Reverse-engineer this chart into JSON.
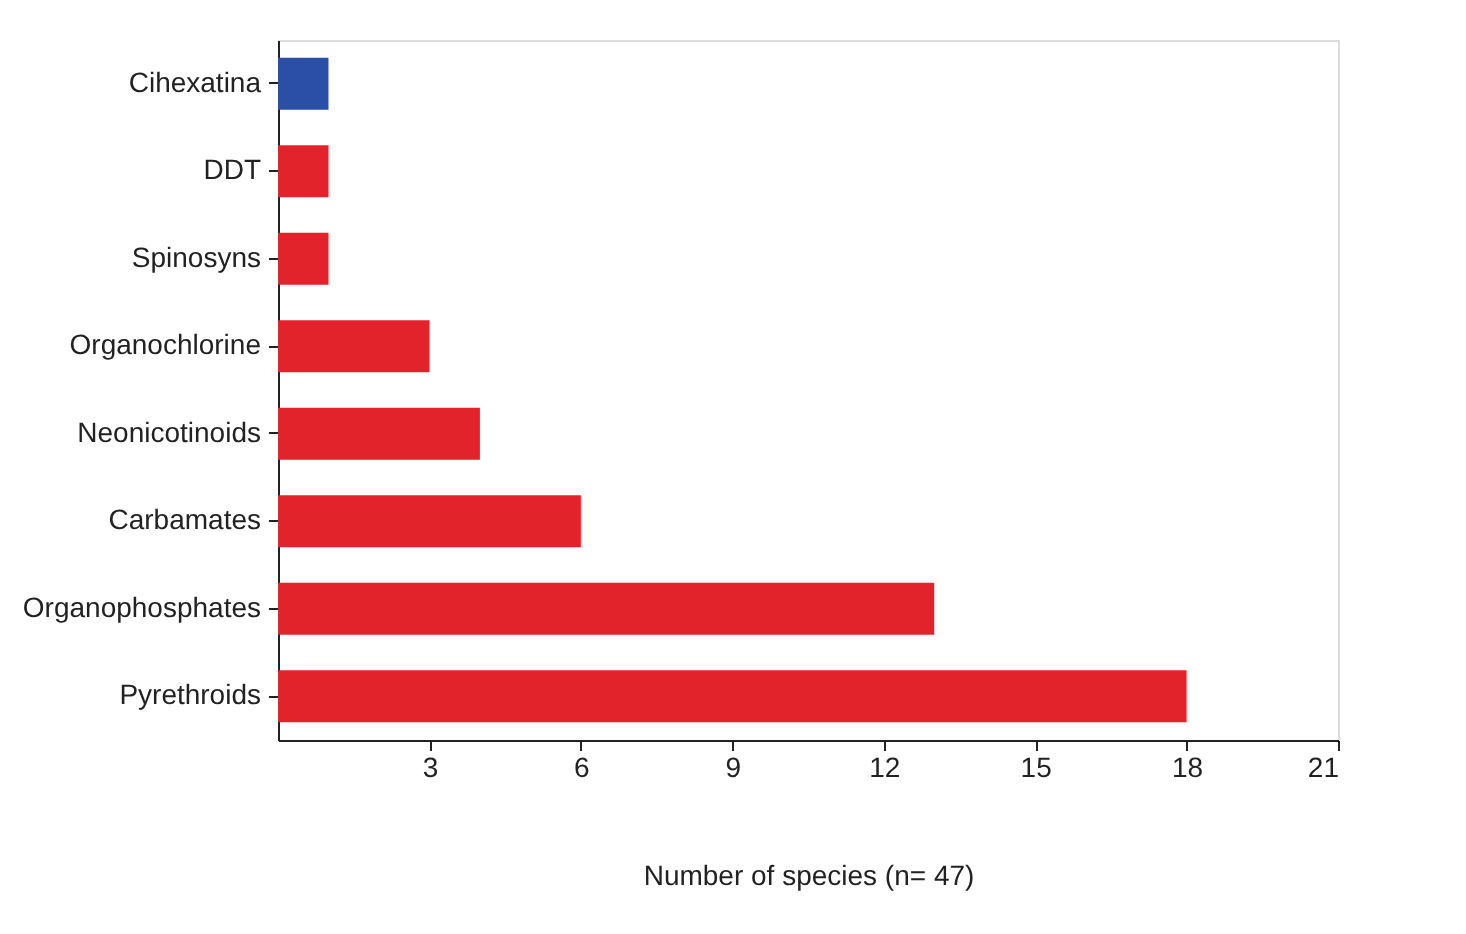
{
  "chart_data": {
    "type": "bar",
    "orientation": "horizontal",
    "xlabel": "Number of species (n= 47)",
    "categories": [
      "Cihexatina",
      "DDT",
      "Spinosyns",
      "Organochlorine",
      "Neonicotinoids",
      "Carbamates",
      "Organophosphates",
      "Pyrethroids"
    ],
    "values": [
      1,
      1,
      1,
      3,
      4,
      6,
      13,
      18
    ],
    "colors": [
      "#2b4fa6",
      "#e3232b",
      "#e3232b",
      "#e3232b",
      "#e3232b",
      "#e3232b",
      "#e3232b",
      "#e3232b"
    ],
    "xlim": [
      0,
      21
    ],
    "xticks": [
      3,
      6,
      9,
      12,
      15,
      18,
      21
    ],
    "grid": false
  }
}
